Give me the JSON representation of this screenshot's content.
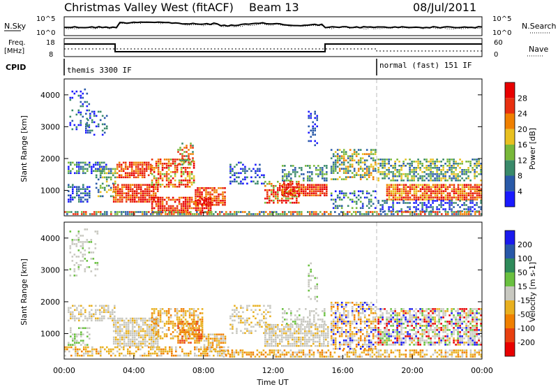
{
  "header": {
    "title": "Christmas Valley West (fitACF)",
    "beam": "Beam 13",
    "date": "08/Jul/2011"
  },
  "nsky_panel": {
    "left_label": "N.Sky",
    "right_label": "N.Search",
    "left_ticks": [
      "10^5",
      "10^0"
    ],
    "right_ticks": [
      "10^5",
      "10^0"
    ]
  },
  "freq_panel": {
    "left_label_1": "Freq.",
    "left_label_2": "[MHz]",
    "right_label": "Nave",
    "left_ticks": [
      "18",
      "8"
    ],
    "right_ticks": [
      "60",
      "0"
    ]
  },
  "cpid_panel": {
    "label": "CPID",
    "mode_1": "themis 3300 IF",
    "mode_2": "normal (fast) 151 IF"
  },
  "chart_data": [
    {
      "type": "heatmap",
      "name": "power",
      "ylabel": "Slant Range [km]",
      "yticks": [
        "1000",
        "2000",
        "3000",
        "4000"
      ],
      "ylim": [
        200,
        4500
      ],
      "colorbar_label": "Power [dB]",
      "colorbar_ticks": [
        "4",
        "8",
        "12",
        "16",
        "20",
        "24",
        "28"
      ],
      "colorbar_colors": [
        "#1a1aff",
        "#2a5aa8",
        "#3a8a6a",
        "#78b83a",
        "#e8c020",
        "#f08000",
        "#e83010",
        "#e80000"
      ],
      "xticks": [
        "00:00",
        "04:00",
        "08:00",
        "12:00",
        "16:00",
        "20:00",
        "00:00"
      ],
      "mode_change_hour": 18
    },
    {
      "type": "heatmap",
      "name": "velocity",
      "ylabel": "Slant Range [km]",
      "yticks": [
        "1000",
        "2000",
        "3000",
        "4000"
      ],
      "ylim": [
        200,
        4500
      ],
      "colorbar_label": "Velocity [m s-1]",
      "colorbar_ticks": [
        "200",
        "100",
        "50",
        "15",
        "-15",
        "-50",
        "-100",
        "-200"
      ],
      "colorbar_colors": [
        "#1a1aee",
        "#2858a8",
        "#2e8a5a",
        "#6ac040",
        "#c8c8c0",
        "#e8b020",
        "#f08000",
        "#e84010",
        "#e80000"
      ],
      "xticks": [
        "00:00",
        "04:00",
        "08:00",
        "12:00",
        "16:00",
        "20:00",
        "00:00"
      ],
      "xlabel": "Time UT"
    }
  ],
  "colors": {
    "ground_scatter": "#c8c8c0"
  }
}
